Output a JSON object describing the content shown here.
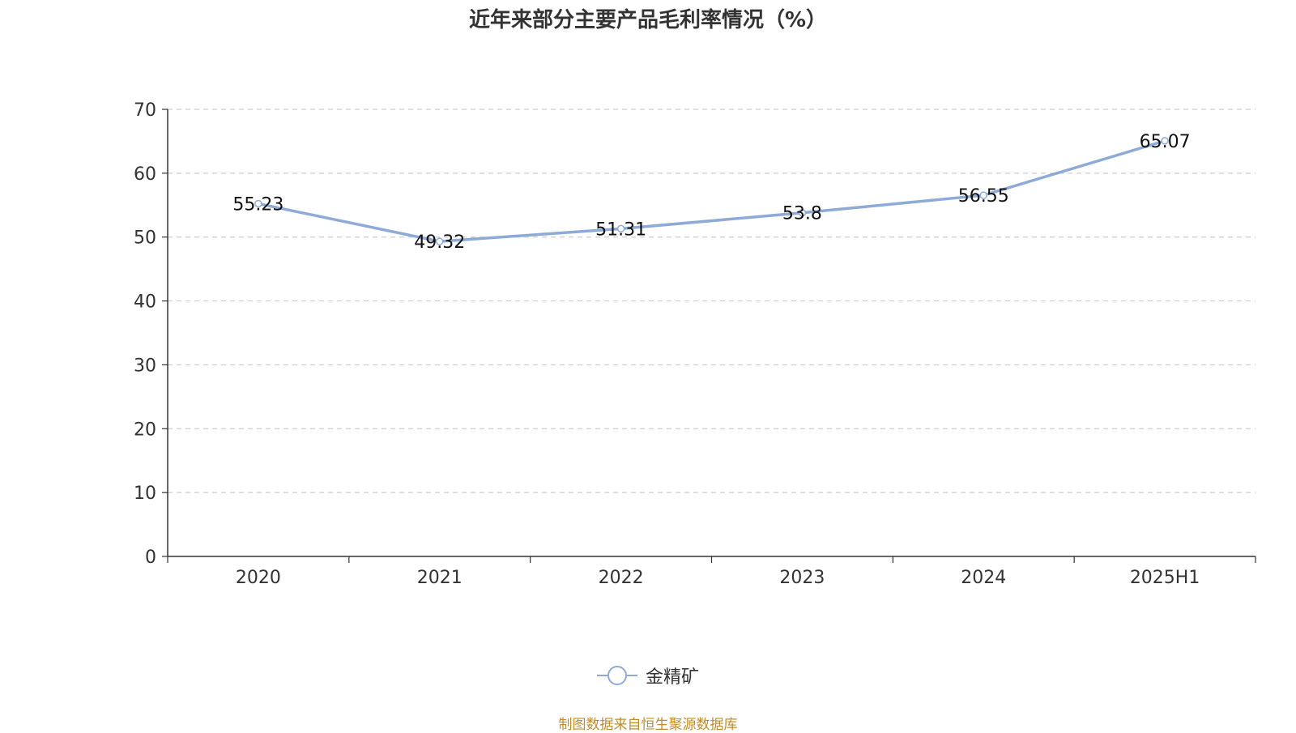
{
  "title": "近年来部分主要产品毛利率情况（%）",
  "source": "制图数据来自恒生聚源数据库",
  "colors": {
    "line": "#8eaad6",
    "axis": "#333333",
    "grid": "#cccccc",
    "source": "#c28c2b"
  },
  "chart_data": {
    "type": "line",
    "categories": [
      "2020",
      "2021",
      "2022",
      "2023",
      "2024",
      "2025H1"
    ],
    "series": [
      {
        "name": "金精矿",
        "values": [
          55.23,
          49.32,
          51.31,
          53.8,
          56.55,
          65.07
        ]
      }
    ],
    "data_labels": [
      "55.23",
      "49.32",
      "51.31",
      "53.8",
      "56.55",
      "65.07"
    ],
    "ylim": [
      0,
      70
    ],
    "yticks": [
      0,
      10,
      20,
      30,
      40,
      50,
      60,
      70
    ],
    "grid": true,
    "legend_position": "bottom-center"
  }
}
